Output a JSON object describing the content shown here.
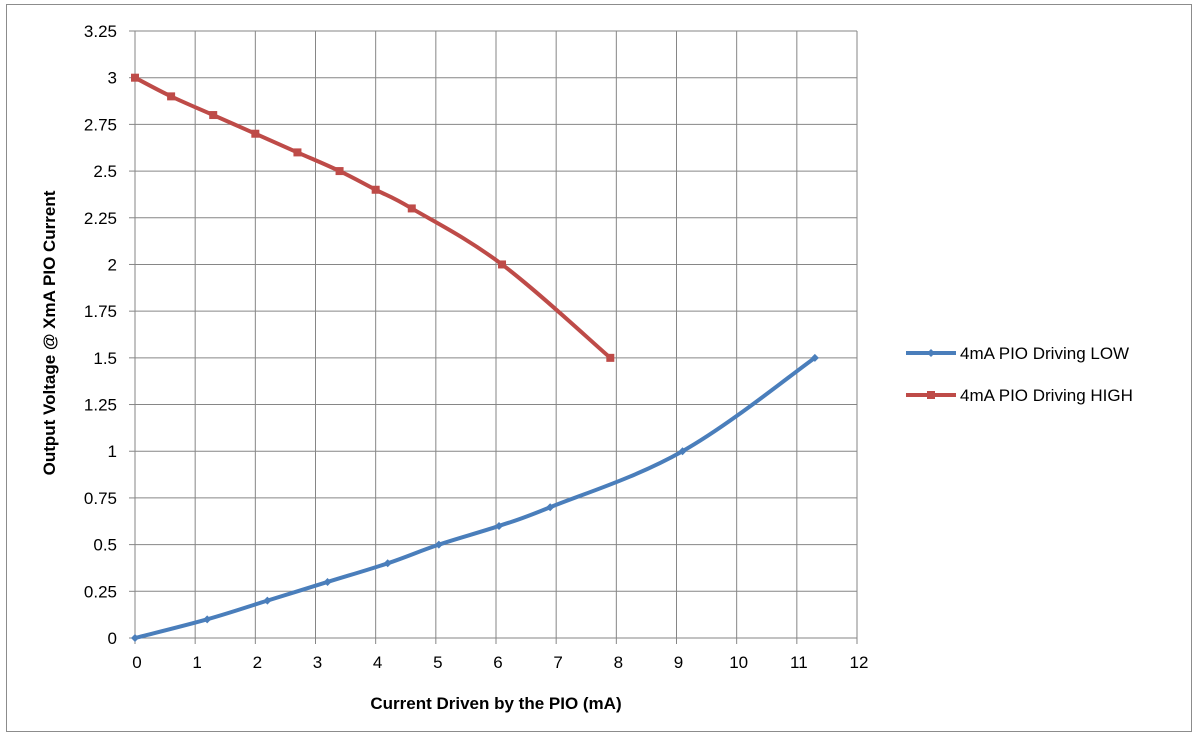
{
  "chart_data": {
    "type": "line",
    "title": "",
    "xlabel": "Current Driven by the PIO (mA)",
    "ylabel": "Output Voltage @ XmA PIO Current",
    "xlim": [
      0,
      12
    ],
    "ylim": [
      0,
      3.25
    ],
    "x_ticks": [
      "0",
      "1",
      "2",
      "3",
      "4",
      "5",
      "6",
      "7",
      "8",
      "9",
      "10",
      "11",
      "12"
    ],
    "y_ticks": [
      "0",
      "0.25",
      "0.5",
      "0.75",
      "1",
      "1.25",
      "1.5",
      "1.75",
      "2",
      "2.25",
      "2.5",
      "2.75",
      "3",
      "3.25"
    ],
    "grid": true,
    "legend_position": "right",
    "series": [
      {
        "name": "4mA PIO Driving LOW",
        "color": "#4a7ebb",
        "marker": "diamond",
        "x": [
          0,
          1.2,
          2.2,
          3.2,
          4.2,
          5.05,
          6.05,
          6.9,
          9.1,
          11.3
        ],
        "y": [
          0,
          0.1,
          0.2,
          0.3,
          0.4,
          0.5,
          0.6,
          0.7,
          1.0,
          1.5
        ]
      },
      {
        "name": "4mA PIO Driving HIGH",
        "color": "#be4b48",
        "marker": "square",
        "x": [
          0,
          0.6,
          1.3,
          2.0,
          2.7,
          3.4,
          4.0,
          4.6,
          6.1,
          7.9
        ],
        "y": [
          3.0,
          2.9,
          2.8,
          2.7,
          2.6,
          2.5,
          2.4,
          2.3,
          2.0,
          1.5
        ]
      }
    ]
  }
}
